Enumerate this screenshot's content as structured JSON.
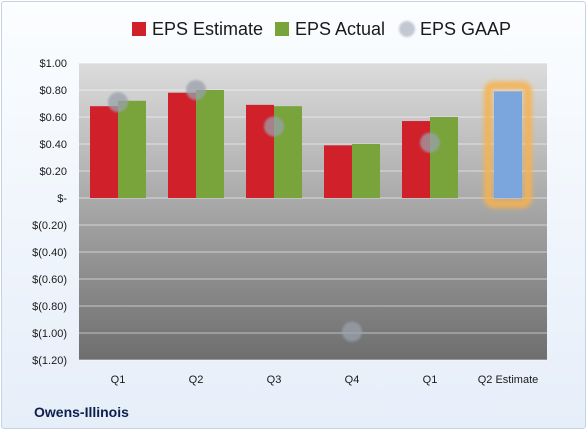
{
  "company": "Owens-Illinois",
  "chart_data": {
    "type": "bar",
    "categories": [
      "Q1",
      "Q2",
      "Q3",
      "Q4",
      "Q1",
      "Q2 Estimate"
    ],
    "series": [
      {
        "name": "EPS Estimate",
        "color": "#d0202a",
        "values": [
          0.68,
          0.78,
          0.69,
          0.39,
          0.57,
          null
        ]
      },
      {
        "name": "EPS Actual",
        "color": "#79a33b",
        "values": [
          0.72,
          0.8,
          0.68,
          0.4,
          0.6,
          null
        ]
      },
      {
        "name": "EPS GAAP",
        "color": "#b0b7c3",
        "values": [
          0.71,
          0.8,
          0.53,
          -0.99,
          0.41,
          null
        ]
      }
    ],
    "forecast": {
      "category": "Q2 Estimate",
      "value": 0.79,
      "color": "#7aa6dd",
      "glow": "#f7b24d"
    },
    "ylim": [
      -1.2,
      1.0
    ],
    "yticks": [
      1.0,
      0.8,
      0.6,
      0.4,
      0.2,
      0,
      -0.2,
      -0.4,
      -0.6,
      -0.8,
      -1.0,
      -1.2
    ],
    "ytick_labels": [
      "$1.00",
      "$0.80",
      "$0.60",
      "$0.40",
      "$0.20",
      "$-",
      "$(0.20)",
      "$(0.40)",
      "$(0.60)",
      "$(0.80)",
      "$(1.00)",
      "$(1.20)"
    ],
    "grid": true,
    "legend": "top"
  }
}
